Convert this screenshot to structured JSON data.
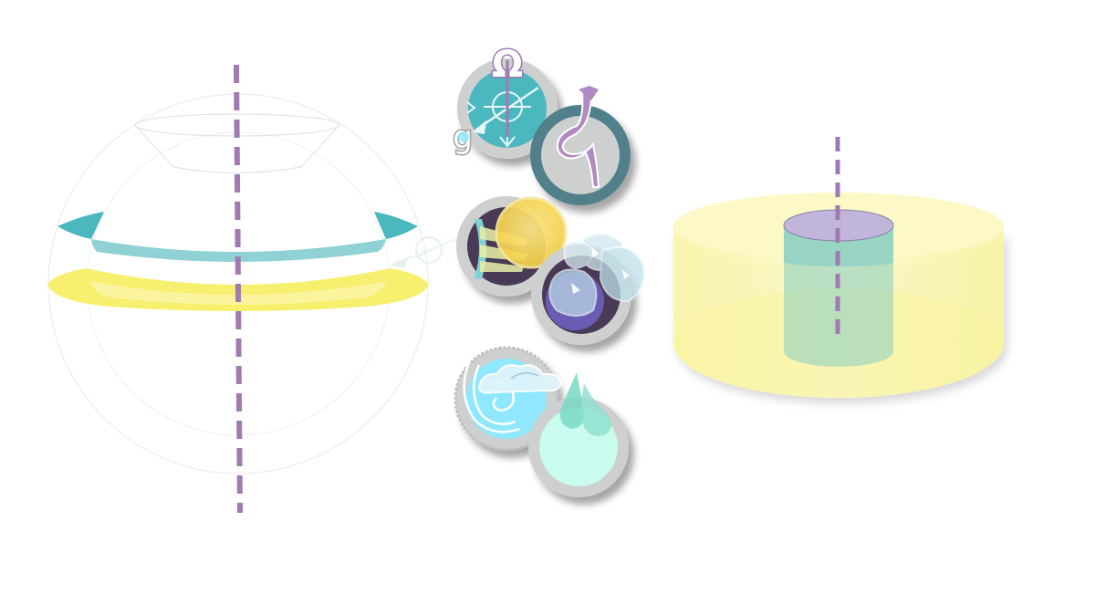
{
  "diagram": {
    "symbols": {
      "omega": "Ω",
      "gravity": "g"
    },
    "colors": {
      "axis": "#a07ab0",
      "teal": "#4bb7bf",
      "teal_light": "#8fd1d4",
      "yellow": "#f7ef6e",
      "yellow_cylinder": "#fbf6a6",
      "lavender": "#c1b5dc",
      "slate": "#517f8a",
      "disc_gray": "#cdd0ce",
      "dark_purple": "#4a3a55",
      "violet": "#6b5bb5",
      "sky": "#8fe8ff",
      "mint": "#c9fbee",
      "sea": "#7ad8c6"
    },
    "icons": [
      "rotation-gravity-icon",
      "curled-arrow-icon",
      "sun-radiation-icon",
      "ice-crystal-icon",
      "wind-cloud-icon",
      "water-drop-icon"
    ]
  }
}
